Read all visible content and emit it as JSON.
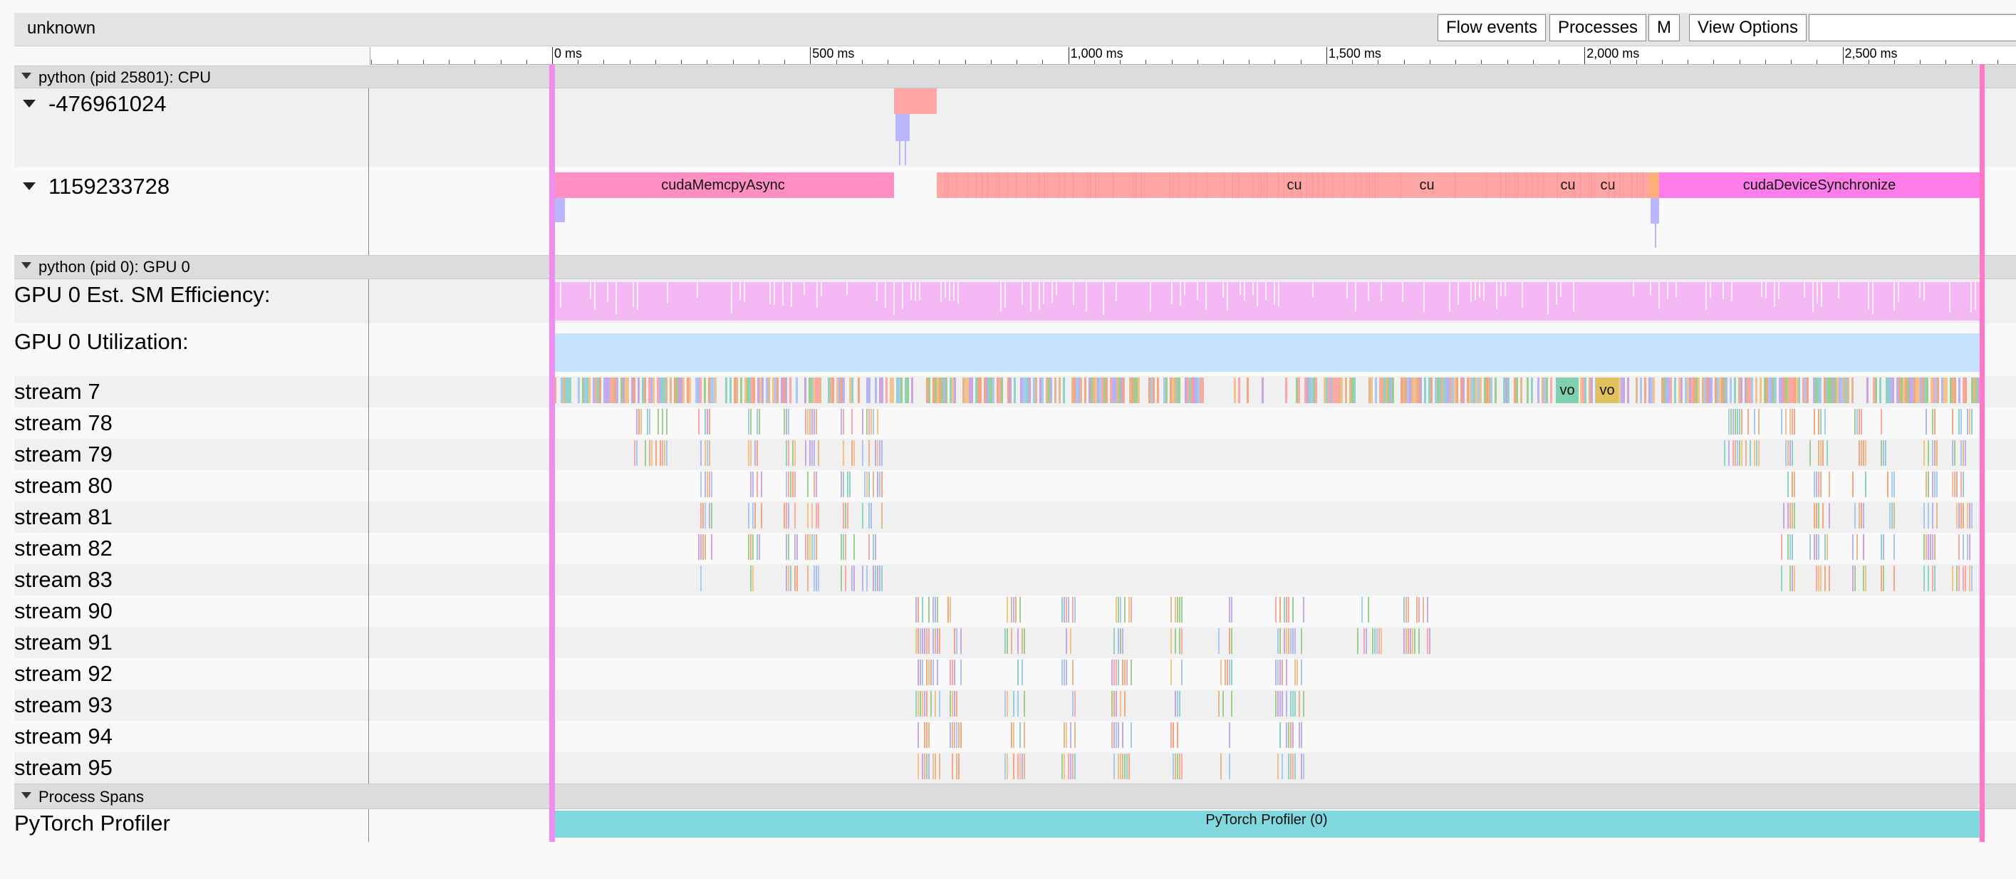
{
  "header": {
    "title": "unknown",
    "buttons": {
      "flow_events": "Flow events",
      "processes": "Processes",
      "m": "M",
      "view_options": "View Options"
    },
    "search": {
      "value": ""
    }
  },
  "ruler": {
    "ticks": [
      {
        "value_ms": 0,
        "label": "0 ms"
      },
      {
        "value_ms": 500,
        "label": "500 ms"
      },
      {
        "value_ms": 1000,
        "label": "1,000 ms"
      },
      {
        "value_ms": 1500,
        "label": "1,500 ms"
      },
      {
        "value_ms": 2000,
        "label": "2,000 ms"
      },
      {
        "value_ms": 2500,
        "label": "2,500 ms"
      }
    ]
  },
  "sections": {
    "cpu": "python (pid 25801): CPU",
    "gpu": "python (pid 0): GPU 0",
    "spans": "Process Spans"
  },
  "cpu_threads": [
    {
      "label": "-476961024"
    },
    {
      "label": "1159233728"
    }
  ],
  "cpu_slices": {
    "memcpy": "cudaMemcpyAsync",
    "cu1": "cu",
    "cu2": "cu",
    "cu3": "cu",
    "cu4": "cu",
    "sync": "cudaDeviceSynchronize"
  },
  "gpu_counters": {
    "sm_efficiency": "GPU 0 Est. SM Efficiency:",
    "utilization": "GPU 0 Utilization:"
  },
  "streams": [
    {
      "label": "stream 7"
    },
    {
      "label": "stream 78"
    },
    {
      "label": "stream 79"
    },
    {
      "label": "stream 80"
    },
    {
      "label": "stream 81"
    },
    {
      "label": "stream 82"
    },
    {
      "label": "stream 83"
    },
    {
      "label": "stream 90"
    },
    {
      "label": "stream 91"
    },
    {
      "label": "stream 92"
    },
    {
      "label": "stream 93"
    },
    {
      "label": "stream 94"
    },
    {
      "label": "stream 95"
    }
  ],
  "stream7_slices": {
    "vo1": "vo",
    "vo2": "vo"
  },
  "spans": {
    "track_label": "PyTorch Profiler",
    "slice_label": "PyTorch Profiler (0)"
  },
  "colors": {
    "pink": "#ff8ec4",
    "salmon": "#ffa6a6",
    "magenta": "#ff7de9",
    "lilac": "#b9b5ff",
    "sm_efficiency": "#f4b8f4",
    "utilization": "#c6e1fb",
    "spans": "#80d7dd",
    "marker": "#f08ee6"
  }
}
